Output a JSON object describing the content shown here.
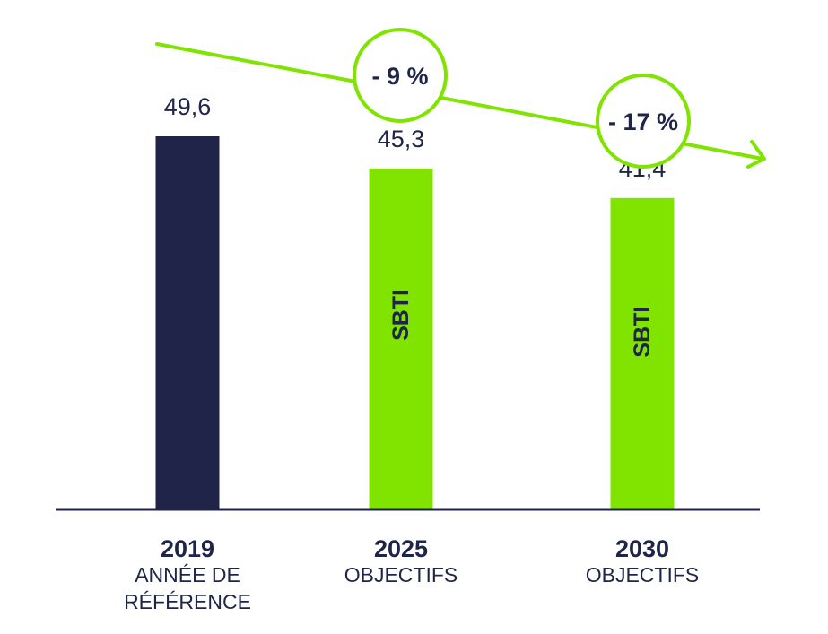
{
  "chart_data": {
    "type": "bar",
    "categories": [
      "2019",
      "2025",
      "2030"
    ],
    "category_sublabels": [
      [
        "ANNÉE DE",
        "RÉFÉRENCE"
      ],
      [
        "OBJECTIFS"
      ],
      [
        "OBJECTIFS"
      ]
    ],
    "values": [
      49.6,
      45.3,
      41.4
    ],
    "value_labels": [
      "49,6",
      "45,3",
      "41,4"
    ],
    "bar_inner_labels": [
      "",
      "SBTI",
      "SBTI"
    ],
    "bar_colors": [
      "#1f2448",
      "#80e400",
      "#80e400"
    ],
    "reductions": [
      {
        "label": "- 9 %",
        "category": "2025"
      },
      {
        "label": "- 17 %",
        "category": "2030"
      }
    ],
    "trend_color": "#80e400",
    "ylim": [
      0,
      50
    ],
    "grid": false,
    "xlabel": "",
    "ylabel": ""
  }
}
